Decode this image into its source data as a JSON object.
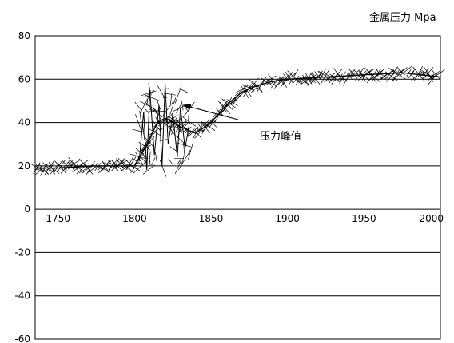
{
  "chart_data": {
    "type": "line",
    "title": "金属压力 Mpa",
    "xlabel": "",
    "ylabel": "",
    "xlim": [
      1735,
      2000
    ],
    "ylim": [
      -60,
      80
    ],
    "x_ticks": [
      1750,
      1800,
      1850,
      1900,
      1950,
      2000
    ],
    "y_ticks": [
      80,
      60,
      40,
      20,
      0,
      -20,
      -40,
      -60
    ],
    "grid": "horizontal",
    "legend": "none",
    "line_color": "#000000",
    "annotation": {
      "text": "压力峰值",
      "arrow_x": 1830,
      "arrow_y": 48
    },
    "trend": {
      "x": [
        1735,
        1750,
        1775,
        1800,
        1808,
        1815,
        1820,
        1830,
        1840,
        1850,
        1860,
        1870,
        1880,
        1890,
        1900,
        1925,
        1950,
        1975,
        2000
      ],
      "y": [
        19,
        19,
        20,
        20,
        30,
        40,
        42,
        38,
        35,
        40,
        48,
        54,
        57,
        59,
        60,
        61,
        62,
        63,
        61
      ]
    },
    "peaks": {
      "x": [
        1803,
        1806,
        1808,
        1810,
        1813,
        1816,
        1818,
        1820,
        1822,
        1825,
        1828,
        1830,
        1833,
        1836
      ],
      "y": [
        22,
        45,
        18,
        55,
        25,
        48,
        20,
        58,
        30,
        44,
        24,
        47,
        28,
        40
      ]
    }
  }
}
